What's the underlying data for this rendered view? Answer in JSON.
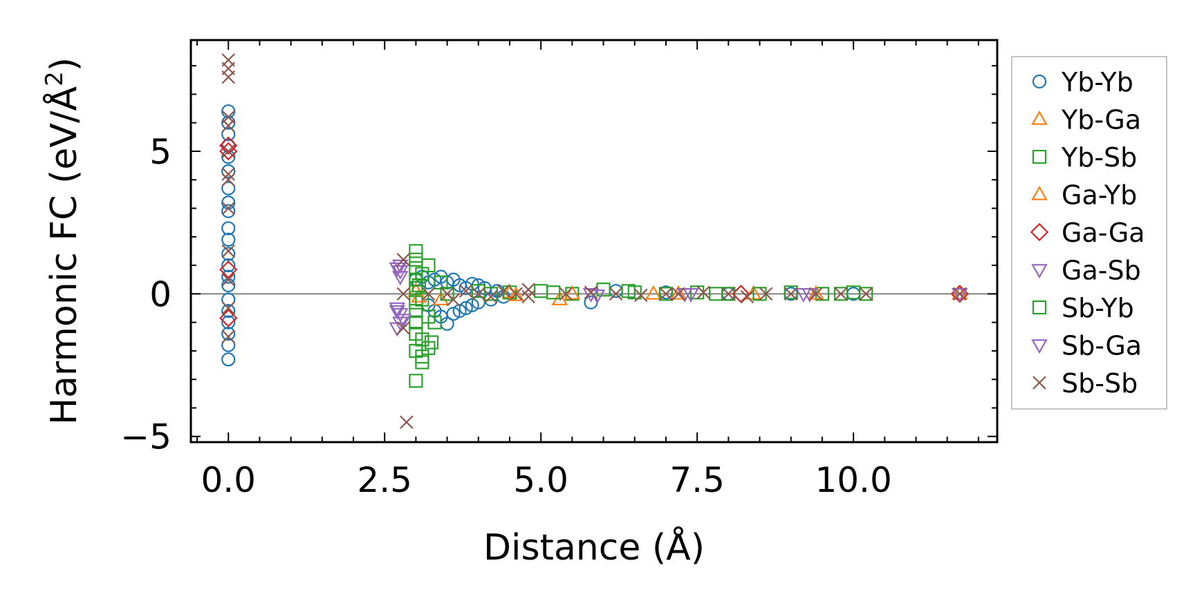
{
  "chart_data": {
    "type": "scatter",
    "title": "",
    "xlabel": "Distance (Å)",
    "ylabel_main": "Harmonic FC (eV/Å",
    "ylabel_sup": "2",
    "ylabel_close": ")",
    "xlim": [
      -0.6,
      12.3
    ],
    "ylim": [
      -5.2,
      8.9
    ],
    "xticks": [
      {
        "value": 0.0,
        "label": "0.0"
      },
      {
        "value": 2.5,
        "label": "2.5"
      },
      {
        "value": 5.0,
        "label": "5.0"
      },
      {
        "value": 7.5,
        "label": "7.5"
      },
      {
        "value": 10.0,
        "label": "10.0"
      }
    ],
    "yticks": [
      {
        "value": -5,
        "label": "−5"
      },
      {
        "value": 0,
        "label": "0"
      },
      {
        "value": 5,
        "label": "5"
      }
    ],
    "zero_line": true,
    "legend_position": "outside-right",
    "series": [
      {
        "name": "Yb-Yb",
        "marker": "circle",
        "color": "#1f77b4",
        "points": [
          [
            0,
            6.4
          ],
          [
            0,
            6.0
          ],
          [
            0,
            5.6
          ],
          [
            0,
            5.2
          ],
          [
            0,
            4.8
          ],
          [
            0,
            4.3
          ],
          [
            0,
            3.7
          ],
          [
            0,
            3.2
          ],
          [
            0,
            2.9
          ],
          [
            0,
            2.3
          ],
          [
            0,
            1.9
          ],
          [
            0,
            1.4
          ],
          [
            0,
            1.0
          ],
          [
            0,
            0.6
          ],
          [
            0,
            0.3
          ],
          [
            0,
            -0.2
          ],
          [
            0,
            -0.6
          ],
          [
            0,
            -1.0
          ],
          [
            0,
            -1.4
          ],
          [
            0,
            -1.8
          ],
          [
            0,
            -2.3
          ],
          [
            3.0,
            0.5
          ],
          [
            3.1,
            0.6
          ],
          [
            3.2,
            0.4
          ],
          [
            3.3,
            0.5
          ],
          [
            3.4,
            0.6
          ],
          [
            3.5,
            0.4
          ],
          [
            3.6,
            0.5
          ],
          [
            3.7,
            0.3
          ],
          [
            3.8,
            0.2
          ],
          [
            3.9,
            0.35
          ],
          [
            4.0,
            0.3
          ],
          [
            4.1,
            0.2
          ],
          [
            4.3,
            0.1
          ],
          [
            3.2,
            -0.4
          ],
          [
            3.3,
            -0.6
          ],
          [
            3.4,
            -0.8
          ],
          [
            3.5,
            -1.05
          ],
          [
            3.6,
            -0.7
          ],
          [
            3.7,
            -0.6
          ],
          [
            3.8,
            -0.5
          ],
          [
            3.9,
            -0.4
          ],
          [
            4.0,
            -0.3
          ],
          [
            4.2,
            -0.2
          ],
          [
            4.4,
            -0.1
          ],
          [
            5.8,
            -0.3
          ],
          [
            6.2,
            0.1
          ],
          [
            7.0,
            0.05
          ],
          [
            8.0,
            0.0
          ],
          [
            9.0,
            0.0
          ],
          [
            10.0,
            0.0
          ]
        ]
      },
      {
        "name": "Yb-Ga",
        "marker": "triangle-up",
        "color": "#ff7f0e",
        "points": [
          [
            3.0,
            0.1
          ],
          [
            3.4,
            -0.2
          ],
          [
            4.5,
            0.05
          ],
          [
            5.3,
            -0.2
          ],
          [
            6.8,
            0.0
          ],
          [
            8.4,
            0.0
          ],
          [
            11.7,
            0.0
          ]
        ]
      },
      {
        "name": "Yb-Sb",
        "marker": "square",
        "color": "#2ca02c",
        "points": [
          [
            3.0,
            1.5
          ],
          [
            3.0,
            1.2
          ],
          [
            3.0,
            0.9
          ],
          [
            3.0,
            0.5
          ],
          [
            3.0,
            0.2
          ],
          [
            3.0,
            -0.3
          ],
          [
            3.0,
            -0.6
          ],
          [
            3.0,
            -1.0
          ],
          [
            3.0,
            -1.4
          ],
          [
            3.0,
            -2.0
          ],
          [
            3.0,
            -3.05
          ],
          [
            3.1,
            -2.4
          ],
          [
            3.1,
            -2.2
          ],
          [
            3.2,
            -1.9
          ],
          [
            3.25,
            -1.7
          ],
          [
            3.1,
            -1.6
          ],
          [
            3.2,
            1.0
          ],
          [
            3.1,
            0.7
          ],
          [
            3.2,
            -0.8
          ],
          [
            3.3,
            -1.0
          ],
          [
            3.4,
            0.4
          ],
          [
            3.5,
            0.0
          ],
          [
            4.0,
            0.1
          ],
          [
            4.5,
            0.05
          ],
          [
            5.0,
            0.1
          ],
          [
            5.5,
            0.0
          ],
          [
            6.0,
            0.15
          ],
          [
            6.5,
            0.05
          ],
          [
            7.0,
            0.0
          ],
          [
            7.5,
            0.05
          ],
          [
            8.0,
            0.0
          ],
          [
            8.5,
            0.0
          ],
          [
            9.0,
            0.05
          ],
          [
            9.5,
            0.0
          ],
          [
            10.0,
            0.05
          ],
          [
            10.2,
            0.0
          ]
        ]
      },
      {
        "name": "Ga-Yb",
        "marker": "triangle-up",
        "color": "#ff7f0e",
        "points": [
          [
            3.05,
            -0.1
          ],
          [
            4.6,
            -0.05
          ],
          [
            5.5,
            0.0
          ],
          [
            7.2,
            0.0
          ],
          [
            9.4,
            0.0
          ]
        ]
      },
      {
        "name": "Ga-Ga",
        "marker": "diamond",
        "color": "#d62728",
        "points": [
          [
            0,
            5.2
          ],
          [
            0,
            5.0
          ],
          [
            0,
            0.85
          ],
          [
            0,
            -0.85
          ],
          [
            8.2,
            0.0
          ],
          [
            11.7,
            0.0
          ]
        ]
      },
      {
        "name": "Ga-Sb",
        "marker": "triangle-down",
        "color": "#9467bd",
        "points": [
          [
            2.75,
            1.0
          ],
          [
            2.75,
            0.8
          ],
          [
            2.75,
            0.6
          ],
          [
            2.7,
            -0.5
          ],
          [
            2.75,
            -0.7
          ],
          [
            2.75,
            -1.0
          ],
          [
            2.7,
            -1.2
          ],
          [
            2.8,
            -0.9
          ],
          [
            5.8,
            0.0
          ],
          [
            7.3,
            0.0
          ],
          [
            9.2,
            0.0
          ],
          [
            11.7,
            0.0
          ]
        ]
      },
      {
        "name": "Sb-Yb",
        "marker": "square",
        "color": "#2ca02c",
        "points": [
          [
            3.05,
            0.3
          ],
          [
            3.1,
            -0.2
          ],
          [
            4.2,
            0.0
          ],
          [
            5.2,
            0.05
          ],
          [
            6.4,
            0.1
          ],
          [
            7.8,
            0.0
          ],
          [
            9.8,
            0.0
          ]
        ]
      },
      {
        "name": "Sb-Ga",
        "marker": "triangle-down",
        "color": "#9467bd",
        "points": [
          [
            2.7,
            0.9
          ],
          [
            2.7,
            -0.6
          ],
          [
            5.9,
            -0.05
          ],
          [
            7.4,
            0.0
          ],
          [
            9.3,
            0.0
          ]
        ]
      },
      {
        "name": "Sb-Sb",
        "marker": "x",
        "color": "#8c564b",
        "points": [
          [
            0,
            8.2
          ],
          [
            0,
            7.9
          ],
          [
            0,
            7.6
          ],
          [
            0,
            6.2
          ],
          [
            0,
            5.9
          ],
          [
            0,
            5.0
          ],
          [
            0,
            4.2
          ],
          [
            0,
            4.0
          ],
          [
            0,
            3.0
          ],
          [
            0,
            1.5
          ],
          [
            0,
            0.5
          ],
          [
            0,
            -0.5
          ],
          [
            0,
            -1.5
          ],
          [
            2.8,
            1.2
          ],
          [
            2.8,
            0.0
          ],
          [
            2.8,
            -1.2
          ],
          [
            2.85,
            -4.5
          ],
          [
            3.2,
            0.0
          ],
          [
            3.5,
            0.0
          ],
          [
            3.6,
            -0.2
          ],
          [
            3.8,
            0.1
          ],
          [
            4.0,
            0.0
          ],
          [
            4.2,
            -0.1
          ],
          [
            4.4,
            0.1
          ],
          [
            4.6,
            0.0
          ],
          [
            4.8,
            0.15
          ],
          [
            4.8,
            -0.1
          ],
          [
            5.4,
            0.0
          ],
          [
            5.8,
            0.05
          ],
          [
            6.2,
            0.0
          ],
          [
            6.6,
            -0.05
          ],
          [
            7.0,
            0.0
          ],
          [
            7.2,
            0.0
          ],
          [
            7.6,
            0.05
          ],
          [
            8.0,
            0.0
          ],
          [
            8.3,
            -0.1
          ],
          [
            8.6,
            0.0
          ],
          [
            9.0,
            0.0
          ],
          [
            9.4,
            0.0
          ],
          [
            9.8,
            0.0
          ],
          [
            10.2,
            0.0
          ],
          [
            11.7,
            0.0
          ]
        ]
      }
    ]
  }
}
